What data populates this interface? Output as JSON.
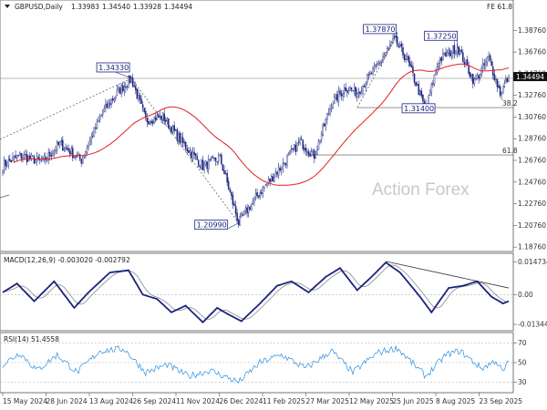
{
  "chart_data": [
    {
      "type": "candlestick",
      "title": "GBPUSD,Daily",
      "ohlc_readout": [
        "1.33983",
        "1.34540",
        "1.33928",
        "1.34494"
      ],
      "indicator_label": "FE 61.8",
      "watermark": "Action Forex",
      "current_price": 1.34494,
      "current_price_label": "1.34494",
      "ylim": [
        1.1852,
        1.3988
      ],
      "y_ticks": [
        1.1876,
        1.2076,
        1.2276,
        1.2476,
        1.2676,
        1.2876,
        1.3076,
        1.3276,
        1.3476,
        1.3676,
        1.3876
      ],
      "y_tick_labels": [
        "1.18760",
        "1.20760",
        "1.22760",
        "1.24760",
        "1.26760",
        "1.28760",
        "1.30760",
        "1.32760",
        "1.34760",
        "1.36760",
        "1.38760"
      ],
      "x_tick_labels": [
        "15 May 2024",
        "28 Jun 2024",
        "13 Aug 2024",
        "26 Sep 2024",
        "11 Nov 2024",
        "26 Dec 2024",
        "11 Feb 2025",
        "27 Mar 2025",
        "12 May 2025",
        "25 Jun 2025",
        "8 Aug 2025",
        "23 Sep 2025"
      ],
      "n_bars": 355,
      "swing_points": [
        {
          "bar": 0,
          "price": 1.263
        },
        {
          "bar": 12,
          "price": 1.272
        },
        {
          "bar": 28,
          "price": 1.266
        },
        {
          "bar": 40,
          "price": 1.283
        },
        {
          "bar": 55,
          "price": 1.268
        },
        {
          "bar": 70,
          "price": 1.312
        },
        {
          "bar": 80,
          "price": 1.33
        },
        {
          "bar": 90,
          "price": 1.3433
        },
        {
          "bar": 100,
          "price": 1.305
        },
        {
          "bar": 112,
          "price": 1.308
        },
        {
          "bar": 125,
          "price": 1.285
        },
        {
          "bar": 140,
          "price": 1.262
        },
        {
          "bar": 152,
          "price": 1.27
        },
        {
          "bar": 165,
          "price": 1.2099
        },
        {
          "bar": 178,
          "price": 1.235
        },
        {
          "bar": 195,
          "price": 1.262
        },
        {
          "bar": 208,
          "price": 1.285
        },
        {
          "bar": 218,
          "price": 1.272
        },
        {
          "bar": 230,
          "price": 1.32
        },
        {
          "bar": 240,
          "price": 1.335
        },
        {
          "bar": 248,
          "price": 1.33
        },
        {
          "bar": 262,
          "price": 1.355
        },
        {
          "bar": 274,
          "price": 1.3787
        },
        {
          "bar": 283,
          "price": 1.36
        },
        {
          "bar": 296,
          "price": 1.314
        },
        {
          "bar": 305,
          "price": 1.36
        },
        {
          "bar": 318,
          "price": 1.3725
        },
        {
          "bar": 330,
          "price": 1.34
        },
        {
          "bar": 340,
          "price": 1.362
        },
        {
          "bar": 348,
          "price": 1.33
        },
        {
          "bar": 354,
          "price": 1.34494
        }
      ],
      "moving_average_color": "#e02020",
      "candle_color": "#1a237e",
      "pivot_labels": [
        {
          "text": "1.34330",
          "bar": 90,
          "price": 1.3433
        },
        {
          "text": "1.20990",
          "bar": 165,
          "price": 1.2099
        },
        {
          "text": "1.37870",
          "bar": 274,
          "price": 1.3787
        },
        {
          "text": "1.37250",
          "bar": 318,
          "price": 1.3725
        },
        {
          "text": "1.31400",
          "bar": 296,
          "price": 1.314
        }
      ],
      "fibonacci_levels": [
        {
          "label": "38.2",
          "price": 1.3163
        },
        {
          "label": "61.8",
          "price": 1.2726
        }
      ],
      "resistance_price": 1.3433
    },
    {
      "type": "line",
      "title": "MACD(12,26,9) -0.003020 -0.002792",
      "ylim": [
        -0.0155,
        0.0162
      ],
      "y_ticks": [
        0.014734,
        0.0,
        -0.013442
      ],
      "y_tick_labels": [
        "0.014734",
        "0.00",
        "-0.013442"
      ],
      "swing_points": [
        {
          "bar": 0,
          "value": 0.001
        },
        {
          "bar": 10,
          "value": 0.005
        },
        {
          "bar": 22,
          "value": -0.003
        },
        {
          "bar": 36,
          "value": 0.006
        },
        {
          "bar": 50,
          "value": -0.006
        },
        {
          "bar": 60,
          "value": 0.001
        },
        {
          "bar": 75,
          "value": 0.01
        },
        {
          "bar": 88,
          "value": 0.011
        },
        {
          "bar": 98,
          "value": 0.0
        },
        {
          "bar": 108,
          "value": -0.002
        },
        {
          "bar": 118,
          "value": -0.008
        },
        {
          "bar": 128,
          "value": -0.005
        },
        {
          "bar": 140,
          "value": -0.0125
        },
        {
          "bar": 150,
          "value": -0.006
        },
        {
          "bar": 158,
          "value": -0.009
        },
        {
          "bar": 167,
          "value": -0.012
        },
        {
          "bar": 180,
          "value": -0.004
        },
        {
          "bar": 192,
          "value": 0.004
        },
        {
          "bar": 202,
          "value": 0.006
        },
        {
          "bar": 214,
          "value": 0.001
        },
        {
          "bar": 226,
          "value": 0.008
        },
        {
          "bar": 236,
          "value": 0.012
        },
        {
          "bar": 248,
          "value": 0.002
        },
        {
          "bar": 258,
          "value": 0.008
        },
        {
          "bar": 268,
          "value": 0.0145
        },
        {
          "bar": 278,
          "value": 0.01
        },
        {
          "bar": 292,
          "value": -0.001
        },
        {
          "bar": 300,
          "value": -0.008
        },
        {
          "bar": 312,
          "value": 0.003
        },
        {
          "bar": 322,
          "value": 0.004
        },
        {
          "bar": 332,
          "value": 0.006
        },
        {
          "bar": 342,
          "value": -0.001
        },
        {
          "bar": 350,
          "value": -0.004
        },
        {
          "bar": 354,
          "value": -0.003
        }
      ],
      "trendline": [
        {
          "bar": 268,
          "value": 0.015
        },
        {
          "bar": 354,
          "value": 0.003
        }
      ],
      "main_color": "#1a237e",
      "signal_color": "#888888"
    },
    {
      "type": "line",
      "title": "RSI(14) 51.4558",
      "ylim": [
        22,
        78
      ],
      "y_ticks": [
        70,
        50,
        30
      ],
      "y_tick_labels": [
        "70",
        "50",
        "30"
      ],
      "swing_points": [
        {
          "bar": 0,
          "value": 48
        },
        {
          "bar": 12,
          "value": 60
        },
        {
          "bar": 24,
          "value": 42
        },
        {
          "bar": 38,
          "value": 58
        },
        {
          "bar": 52,
          "value": 40
        },
        {
          "bar": 68,
          "value": 62
        },
        {
          "bar": 85,
          "value": 64
        },
        {
          "bar": 100,
          "value": 40
        },
        {
          "bar": 115,
          "value": 48
        },
        {
          "bar": 130,
          "value": 36
        },
        {
          "bar": 145,
          "value": 42
        },
        {
          "bar": 165,
          "value": 30
        },
        {
          "bar": 180,
          "value": 50
        },
        {
          "bar": 195,
          "value": 58
        },
        {
          "bar": 212,
          "value": 44
        },
        {
          "bar": 230,
          "value": 62
        },
        {
          "bar": 245,
          "value": 40
        },
        {
          "bar": 262,
          "value": 60
        },
        {
          "bar": 276,
          "value": 65
        },
        {
          "bar": 296,
          "value": 36
        },
        {
          "bar": 310,
          "value": 58
        },
        {
          "bar": 320,
          "value": 62
        },
        {
          "bar": 335,
          "value": 44
        },
        {
          "bar": 345,
          "value": 52
        },
        {
          "bar": 350,
          "value": 40
        },
        {
          "bar": 354,
          "value": 51.4558
        }
      ],
      "line_color": "#2b8fe0"
    }
  ]
}
